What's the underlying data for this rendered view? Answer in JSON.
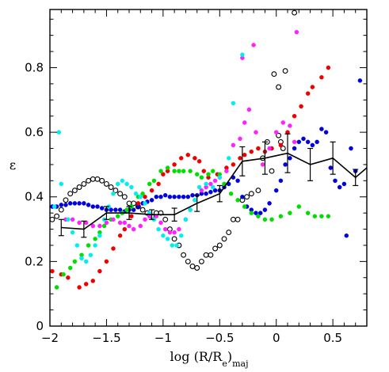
{
  "chart_data": {
    "type": "scatter",
    "title": "",
    "xlabel": "log (R/R_e)_maj",
    "xlabel_parts": {
      "pre": "log (R/R",
      "sub_e": "e",
      "close": ")",
      "sub_maj": "maj"
    },
    "ylabel": "ε",
    "xlim": [
      -2.0,
      0.8
    ],
    "ylim": [
      0.0,
      0.98
    ],
    "xticks": [
      -2,
      -1.5,
      -1,
      -0.5,
      0,
      0.5
    ],
    "xtick_labels": [
      "−2",
      "−1.5",
      "−1",
      "−0.5",
      "0",
      "0.5"
    ],
    "yticks": [
      0,
      0.2,
      0.4,
      0.6,
      0.8
    ],
    "ytick_labels": [
      "0",
      "0.2",
      "0.4",
      "0.6",
      "0.8"
    ],
    "grid": false,
    "series": [
      {
        "color": "#000000",
        "marker": "open-circle",
        "points": [
          [
            -1.98,
            0.33
          ],
          [
            -1.94,
            0.34
          ],
          [
            -1.9,
            0.36
          ],
          [
            -1.86,
            0.39
          ],
          [
            -1.82,
            0.41
          ],
          [
            -1.78,
            0.42
          ],
          [
            -1.74,
            0.43
          ],
          [
            -1.7,
            0.44
          ],
          [
            -1.66,
            0.45
          ],
          [
            -1.62,
            0.455
          ],
          [
            -1.58,
            0.455
          ],
          [
            -1.54,
            0.45
          ],
          [
            -1.5,
            0.44
          ],
          [
            -1.46,
            0.43
          ],
          [
            -1.42,
            0.42
          ],
          [
            -1.38,
            0.41
          ],
          [
            -1.34,
            0.4
          ],
          [
            -1.3,
            0.38
          ],
          [
            -1.26,
            0.38
          ],
          [
            -1.22,
            0.37
          ],
          [
            -1.18,
            0.36
          ],
          [
            -1.14,
            0.35
          ],
          [
            -1.1,
            0.34
          ],
          [
            -1.06,
            0.35
          ],
          [
            -1.02,
            0.35
          ],
          [
            -0.98,
            0.33
          ],
          [
            -0.94,
            0.3
          ],
          [
            -0.9,
            0.27
          ],
          [
            -0.86,
            0.25
          ],
          [
            -0.82,
            0.22
          ],
          [
            -0.78,
            0.2
          ],
          [
            -0.74,
            0.185
          ],
          [
            -0.7,
            0.18
          ],
          [
            -0.66,
            0.2
          ],
          [
            -0.62,
            0.22
          ],
          [
            -0.58,
            0.22
          ],
          [
            -0.54,
            0.24
          ],
          [
            -0.5,
            0.25
          ],
          [
            -0.46,
            0.27
          ],
          [
            -0.42,
            0.29
          ],
          [
            -0.38,
            0.33
          ],
          [
            -0.34,
            0.33
          ],
          [
            -0.3,
            0.39
          ],
          [
            -0.26,
            0.4
          ],
          [
            -0.22,
            0.41
          ],
          [
            -0.16,
            0.42
          ],
          [
            -0.12,
            0.52
          ],
          [
            -0.08,
            0.57
          ],
          [
            -0.04,
            0.48
          ],
          [
            0.02,
            0.59
          ],
          [
            0.04,
            0.57
          ],
          [
            0.06,
            0.55
          ],
          [
            -0.02,
            0.78
          ],
          [
            0.02,
            0.74
          ],
          [
            0.08,
            0.79
          ],
          [
            0.16,
            0.97
          ]
        ]
      },
      {
        "color": "#0000dd",
        "marker": "filled-circle",
        "points": [
          [
            -1.98,
            0.37
          ],
          [
            -1.94,
            0.37
          ],
          [
            -1.9,
            0.375
          ],
          [
            -1.86,
            0.375
          ],
          [
            -1.82,
            0.38
          ],
          [
            -1.78,
            0.38
          ],
          [
            -1.74,
            0.38
          ],
          [
            -1.7,
            0.38
          ],
          [
            -1.66,
            0.375
          ],
          [
            -1.62,
            0.37
          ],
          [
            -1.58,
            0.37
          ],
          [
            -1.54,
            0.365
          ],
          [
            -1.5,
            0.36
          ],
          [
            -1.46,
            0.36
          ],
          [
            -1.42,
            0.36
          ],
          [
            -1.38,
            0.36
          ],
          [
            -1.34,
            0.355
          ],
          [
            -1.3,
            0.36
          ],
          [
            -1.26,
            0.36
          ],
          [
            -1.22,
            0.37
          ],
          [
            -1.18,
            0.38
          ],
          [
            -1.14,
            0.385
          ],
          [
            -1.1,
            0.39
          ],
          [
            -1.06,
            0.4
          ],
          [
            -1.02,
            0.4
          ],
          [
            -0.98,
            0.405
          ],
          [
            -0.94,
            0.4
          ],
          [
            -0.9,
            0.4
          ],
          [
            -0.86,
            0.4
          ],
          [
            -0.82,
            0.4
          ],
          [
            -0.78,
            0.4
          ],
          [
            -0.74,
            0.405
          ],
          [
            -0.7,
            0.405
          ],
          [
            -0.66,
            0.41
          ],
          [
            -0.62,
            0.41
          ],
          [
            -0.58,
            0.415
          ],
          [
            -0.54,
            0.42
          ],
          [
            -0.5,
            0.42
          ],
          [
            -0.46,
            0.43
          ],
          [
            -0.42,
            0.44
          ],
          [
            -0.38,
            0.46
          ],
          [
            -0.34,
            0.45
          ],
          [
            -0.3,
            0.4
          ],
          [
            -0.26,
            0.37
          ],
          [
            -0.22,
            0.36
          ],
          [
            -0.18,
            0.35
          ],
          [
            -0.14,
            0.35
          ],
          [
            -0.1,
            0.36
          ],
          [
            -0.06,
            0.38
          ],
          [
            0.0,
            0.42
          ],
          [
            0.04,
            0.45
          ],
          [
            0.08,
            0.5
          ],
          [
            0.12,
            0.52
          ],
          [
            0.16,
            0.55
          ],
          [
            0.2,
            0.57
          ],
          [
            0.24,
            0.58
          ],
          [
            0.28,
            0.57
          ],
          [
            0.32,
            0.56
          ],
          [
            0.36,
            0.57
          ],
          [
            0.4,
            0.61
          ],
          [
            0.44,
            0.6
          ],
          [
            0.48,
            0.49
          ],
          [
            0.52,
            0.45
          ],
          [
            0.56,
            0.43
          ],
          [
            0.6,
            0.44
          ],
          [
            0.62,
            0.28
          ],
          [
            0.66,
            0.55
          ],
          [
            0.7,
            0.48
          ],
          [
            0.74,
            0.76
          ]
        ]
      },
      {
        "color": "#ee0000",
        "marker": "filled-circle",
        "points": [
          [
            -1.98,
            0.17
          ],
          [
            -1.9,
            0.16
          ],
          [
            -1.84,
            0.15
          ],
          [
            -1.74,
            0.12
          ],
          [
            -1.68,
            0.13
          ],
          [
            -1.62,
            0.14
          ],
          [
            -1.56,
            0.17
          ],
          [
            -1.5,
            0.2
          ],
          [
            -1.44,
            0.24
          ],
          [
            -1.38,
            0.28
          ],
          [
            -1.34,
            0.3
          ],
          [
            -1.28,
            0.34
          ],
          [
            -1.22,
            0.38
          ],
          [
            -1.16,
            0.4
          ],
          [
            -1.1,
            0.42
          ],
          [
            -1.04,
            0.44
          ],
          [
            -1.0,
            0.47
          ],
          [
            -0.96,
            0.48
          ],
          [
            -0.9,
            0.5
          ],
          [
            -0.84,
            0.52
          ],
          [
            -0.78,
            0.53
          ],
          [
            -0.72,
            0.52
          ],
          [
            -0.68,
            0.51
          ],
          [
            -0.64,
            0.48
          ],
          [
            -0.6,
            0.46
          ],
          [
            -0.52,
            0.47
          ],
          [
            -0.44,
            0.49
          ],
          [
            -0.38,
            0.5
          ],
          [
            -0.32,
            0.52
          ],
          [
            -0.28,
            0.53
          ],
          [
            -0.22,
            0.54
          ],
          [
            -0.16,
            0.55
          ],
          [
            -0.1,
            0.54
          ],
          [
            -0.04,
            0.55
          ],
          [
            0.04,
            0.56
          ],
          [
            0.1,
            0.6
          ],
          [
            0.16,
            0.65
          ],
          [
            0.22,
            0.68
          ],
          [
            0.28,
            0.72
          ],
          [
            0.32,
            0.74
          ],
          [
            0.4,
            0.77
          ],
          [
            0.46,
            0.8
          ]
        ]
      },
      {
        "color": "#00dd00",
        "marker": "filled-circle",
        "points": [
          [
            -1.94,
            0.12
          ],
          [
            -1.88,
            0.16
          ],
          [
            -1.82,
            0.18
          ],
          [
            -1.78,
            0.2
          ],
          [
            -1.72,
            0.22
          ],
          [
            -1.66,
            0.25
          ],
          [
            -1.6,
            0.27
          ],
          [
            -1.56,
            0.29
          ],
          [
            -1.52,
            0.31
          ],
          [
            -1.46,
            0.33
          ],
          [
            -1.4,
            0.34
          ],
          [
            -1.36,
            0.35
          ],
          [
            -1.32,
            0.36
          ],
          [
            -1.28,
            0.37
          ],
          [
            -1.22,
            0.4
          ],
          [
            -1.18,
            0.41
          ],
          [
            -1.12,
            0.44
          ],
          [
            -1.08,
            0.45
          ],
          [
            -1.02,
            0.48
          ],
          [
            -0.96,
            0.49
          ],
          [
            -0.9,
            0.48
          ],
          [
            -0.86,
            0.48
          ],
          [
            -0.82,
            0.48
          ],
          [
            -0.76,
            0.48
          ],
          [
            -0.7,
            0.47
          ],
          [
            -0.66,
            0.46
          ],
          [
            -0.6,
            0.47
          ],
          [
            -0.56,
            0.48
          ],
          [
            -0.5,
            0.47
          ],
          [
            -0.46,
            0.44
          ],
          [
            -0.4,
            0.41
          ],
          [
            -0.34,
            0.39
          ],
          [
            -0.28,
            0.37
          ],
          [
            -0.22,
            0.35
          ],
          [
            -0.16,
            0.34
          ],
          [
            -0.1,
            0.33
          ],
          [
            -0.04,
            0.33
          ],
          [
            0.04,
            0.34
          ],
          [
            0.12,
            0.35
          ],
          [
            0.2,
            0.37
          ],
          [
            0.28,
            0.35
          ],
          [
            0.34,
            0.34
          ],
          [
            0.4,
            0.34
          ],
          [
            0.46,
            0.34
          ]
        ]
      },
      {
        "color": "#ff22ff",
        "marker": "filled-circle",
        "points": [
          [
            -1.86,
            0.33
          ],
          [
            -1.8,
            0.33
          ],
          [
            -1.74,
            0.32
          ],
          [
            -1.68,
            0.32
          ],
          [
            -1.62,
            0.31
          ],
          [
            -1.56,
            0.31
          ],
          [
            -1.5,
            0.32
          ],
          [
            -1.44,
            0.33
          ],
          [
            -1.38,
            0.32
          ],
          [
            -1.34,
            0.32
          ],
          [
            -1.3,
            0.31
          ],
          [
            -1.26,
            0.3
          ],
          [
            -1.2,
            0.31
          ],
          [
            -1.16,
            0.33
          ],
          [
            -1.12,
            0.34
          ],
          [
            -1.06,
            0.34
          ],
          [
            -1.02,
            0.32
          ],
          [
            -0.98,
            0.3
          ],
          [
            -0.94,
            0.29
          ],
          [
            -0.9,
            0.29
          ],
          [
            -0.86,
            0.3
          ],
          [
            -0.8,
            0.33
          ],
          [
            -0.76,
            0.36
          ],
          [
            -0.72,
            0.39
          ],
          [
            -0.66,
            0.42
          ],
          [
            -0.62,
            0.43
          ],
          [
            -0.58,
            0.44
          ],
          [
            -0.54,
            0.45
          ],
          [
            -0.5,
            0.46
          ],
          [
            -0.44,
            0.48
          ],
          [
            -0.38,
            0.56
          ],
          [
            -0.32,
            0.58
          ],
          [
            -0.28,
            0.63
          ],
          [
            -0.24,
            0.67
          ],
          [
            -0.18,
            0.6
          ],
          [
            -0.12,
            0.5
          ],
          [
            -0.06,
            0.55
          ],
          [
            0.0,
            0.6
          ],
          [
            0.06,
            0.63
          ],
          [
            0.12,
            0.62
          ],
          [
            0.16,
            0.57
          ],
          [
            -0.3,
            0.83
          ],
          [
            -0.2,
            0.87
          ],
          [
            0.18,
            0.91
          ]
        ]
      },
      {
        "color": "#00eeee",
        "marker": "filled-circle",
        "points": [
          [
            -1.96,
            0.37
          ],
          [
            -1.9,
            0.44
          ],
          [
            -1.92,
            0.6
          ],
          [
            -1.84,
            0.33
          ],
          [
            -1.8,
            0.29
          ],
          [
            -1.76,
            0.25
          ],
          [
            -1.72,
            0.21
          ],
          [
            -1.68,
            0.2
          ],
          [
            -1.64,
            0.22
          ],
          [
            -1.6,
            0.25
          ],
          [
            -1.56,
            0.28
          ],
          [
            -1.52,
            0.33
          ],
          [
            -1.48,
            0.37
          ],
          [
            -1.44,
            0.41
          ],
          [
            -1.4,
            0.44
          ],
          [
            -1.36,
            0.45
          ],
          [
            -1.32,
            0.44
          ],
          [
            -1.28,
            0.43
          ],
          [
            -1.24,
            0.41
          ],
          [
            -1.2,
            0.4
          ],
          [
            -1.16,
            0.38
          ],
          [
            -1.12,
            0.35
          ],
          [
            -1.08,
            0.33
          ],
          [
            -1.04,
            0.3
          ],
          [
            -1.0,
            0.28
          ],
          [
            -0.96,
            0.27
          ],
          [
            -0.92,
            0.25
          ],
          [
            -0.88,
            0.25
          ],
          [
            -0.84,
            0.28
          ],
          [
            -0.8,
            0.33
          ],
          [
            -0.76,
            0.36
          ],
          [
            -0.72,
            0.39
          ],
          [
            -0.68,
            0.43
          ],
          [
            -0.62,
            0.44
          ],
          [
            -0.56,
            0.43
          ],
          [
            -0.5,
            0.46
          ],
          [
            -0.42,
            0.52
          ],
          [
            -0.38,
            0.69
          ],
          [
            -0.3,
            0.84
          ]
        ]
      }
    ],
    "mean_profile": {
      "color": "#000000",
      "x": [
        -1.9,
        -1.7,
        -1.5,
        -1.3,
        -1.1,
        -0.9,
        -0.7,
        -0.5,
        -0.3,
        -0.1,
        0.1,
        0.3,
        0.5,
        0.7,
        0.8
      ],
      "y": [
        0.305,
        0.3,
        0.35,
        0.35,
        0.345,
        0.345,
        0.38,
        0.41,
        0.51,
        0.52,
        0.535,
        0.5,
        0.52,
        0.46,
        0.49
      ],
      "err": [
        0.025,
        0.025,
        0.02,
        0.02,
        0.015,
        0.02,
        0.025,
        0.025,
        0.045,
        0.05,
        0.06,
        0.05,
        0.05,
        0.025,
        0.0
      ]
    }
  }
}
